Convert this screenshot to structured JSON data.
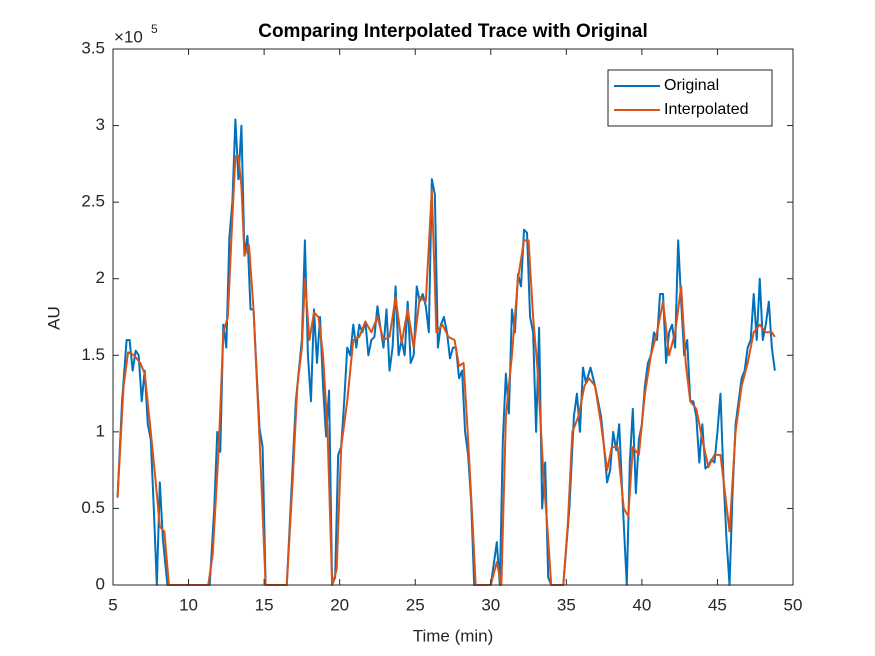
{
  "chart_data": {
    "type": "line",
    "title": "Comparing Interpolated Trace with Original",
    "x_label": "Time (min)",
    "y_label": "AU",
    "y_multiplier_base": "×10",
    "y_multiplier_exponent": "5",
    "xlim": [
      5,
      50
    ],
    "xticks": [
      5,
      10,
      15,
      20,
      25,
      30,
      35,
      40,
      45,
      50
    ],
    "ylim": [
      0,
      3.5
    ],
    "yticks": [
      0,
      0.5,
      1,
      1.5,
      2,
      2.5,
      3,
      3.5
    ],
    "grid": false,
    "legend_position": "northeast",
    "series": [
      {
        "name": "Original",
        "color": "#0072BD",
        "x": [
          5.3,
          5.6,
          5.9,
          6.1,
          6.3,
          6.5,
          6.7,
          6.9,
          7.1,
          7.3,
          7.5,
          7.7,
          7.9,
          8.1,
          8.3,
          8.6,
          9,
          10,
          11,
          11.4,
          11.7,
          11.9,
          12.1,
          12.3,
          12.5,
          12.7,
          12.9,
          13.1,
          13.3,
          13.5,
          13.7,
          13.9,
          14.1,
          14.3,
          14.5,
          14.7,
          14.9,
          15.1,
          15.5,
          16,
          16.5,
          16.9,
          17.1,
          17.3,
          17.5,
          17.7,
          17.9,
          18.1,
          18.3,
          18.5,
          18.7,
          18.9,
          19.1,
          19.3,
          19.5,
          19.7,
          19.9,
          20.1,
          20.3,
          20.5,
          20.7,
          20.9,
          21.1,
          21.3,
          21.5,
          21.7,
          21.9,
          22.1,
          22.3,
          22.5,
          22.7,
          22.9,
          23.1,
          23.3,
          23.5,
          23.7,
          23.9,
          24.1,
          24.3,
          24.5,
          24.7,
          24.9,
          25.1,
          25.3,
          25.5,
          25.7,
          25.9,
          26.1,
          26.3,
          26.5,
          26.7,
          26.9,
          27.1,
          27.3,
          27.5,
          27.7,
          27.9,
          28.1,
          28.3,
          28.5,
          28.7,
          28.9,
          29.5,
          30,
          30.4,
          30.6,
          30.8,
          31,
          31.2,
          31.4,
          31.6,
          31.8,
          32,
          32.2,
          32.4,
          32.6,
          32.8,
          33,
          33.2,
          33.4,
          33.6,
          33.8,
          34,
          34.5,
          34.8,
          35.2,
          35.5,
          35.7,
          35.9,
          36.1,
          36.3,
          36.6,
          36.9,
          37.1,
          37.3,
          37.5,
          37.7,
          37.9,
          38.1,
          38.3,
          38.5,
          38.7,
          39,
          39.2,
          39.4,
          39.6,
          39.8,
          40,
          40.2,
          40.4,
          40.6,
          40.8,
          41,
          41.2,
          41.4,
          41.6,
          41.8,
          42,
          42.2,
          42.4,
          42.6,
          42.8,
          43,
          43.2,
          43.4,
          43.6,
          43.8,
          44,
          44.2,
          44.4,
          44.6,
          44.8,
          45,
          45.2,
          45.4,
          45.6,
          45.8,
          46,
          46.2,
          46.4,
          46.6,
          46.8,
          47,
          47.2,
          47.4,
          47.6,
          47.8,
          48,
          48.2,
          48.4,
          48.6,
          48.8
        ],
        "values": [
          0.57,
          1.2,
          1.6,
          1.6,
          1.4,
          1.53,
          1.5,
          1.2,
          1.4,
          1.05,
          0.95,
          0.5,
          0,
          0.67,
          0.3,
          0,
          0,
          0,
          0,
          0,
          0.5,
          1.0,
          0.87,
          1.7,
          1.55,
          2.27,
          2.5,
          3.04,
          2.65,
          3.0,
          2.15,
          2.28,
          1.8,
          1.8,
          1.4,
          1.02,
          0.9,
          0,
          0,
          0,
          0,
          0.8,
          1.2,
          1.4,
          1.6,
          2.25,
          1.5,
          1.2,
          1.8,
          1.45,
          1.75,
          1.3,
          0.97,
          1.27,
          0,
          0.05,
          0.85,
          0.9,
          1.2,
          1.55,
          1.5,
          1.7,
          1.55,
          1.7,
          1.65,
          1.72,
          1.5,
          1.6,
          1.62,
          1.82,
          1.68,
          1.55,
          1.8,
          1.4,
          1.55,
          1.95,
          1.5,
          1.6,
          1.5,
          1.85,
          1.45,
          1.5,
          1.95,
          1.85,
          1.9,
          1.82,
          1.65,
          2.65,
          2.55,
          1.55,
          1.7,
          1.75,
          1.65,
          1.48,
          1.55,
          1.55,
          1.35,
          1.4,
          1.0,
          0.85,
          0.55,
          0,
          0,
          0,
          0.28,
          0,
          0.95,
          1.38,
          1.12,
          1.8,
          1.65,
          2.03,
          1.95,
          2.32,
          2.3,
          1.75,
          1.65,
          1.0,
          1.68,
          0.5,
          0.8,
          0.05,
          0,
          0,
          0,
          0.5,
          1.1,
          1.25,
          1.0,
          1.42,
          1.32,
          1.42,
          1.3,
          1.2,
          1.1,
          0.9,
          0.67,
          0.75,
          1.0,
          0.88,
          1.05,
          0.6,
          0,
          0.8,
          1.15,
          0.6,
          0.95,
          1.05,
          1.3,
          1.45,
          1.5,
          1.65,
          1.6,
          1.9,
          1.9,
          1.45,
          1.65,
          1.7,
          1.55,
          2.25,
          1.85,
          1.5,
          1.6,
          1.2,
          1.2,
          1.1,
          0.8,
          1.05,
          0.76,
          0.78,
          0.82,
          0.8,
          1.0,
          1.25,
          0.7,
          0.3,
          0,
          0.6,
          1.05,
          1.2,
          1.35,
          1.4,
          1.55,
          1.6,
          1.9,
          1.6,
          2.0,
          1.6,
          1.7,
          1.85,
          1.55,
          1.4
        ]
      },
      {
        "name": "Interpolated",
        "color": "#D95319",
        "x": [
          5.3,
          5.7,
          6,
          6.4,
          6.8,
          7.1,
          7.5,
          7.8,
          8.1,
          8.4,
          8.7,
          9,
          10,
          11,
          11.3,
          11.6,
          12,
          12.3,
          12.6,
          12.9,
          13.1,
          13.3,
          13.5,
          13.7,
          14,
          14.3,
          14.7,
          15.1,
          15.5,
          16.5,
          16.9,
          17.2,
          17.5,
          17.7,
          18,
          18.3,
          18.6,
          18.9,
          19.2,
          19.5,
          19.8,
          20.1,
          20.5,
          20.9,
          21.3,
          21.7,
          22.1,
          22.5,
          22.9,
          23.3,
          23.7,
          24.1,
          24.5,
          24.9,
          25.3,
          25.7,
          26.1,
          26.4,
          26.8,
          27.2,
          27.6,
          27.9,
          28.2,
          28.5,
          28.8,
          29,
          30,
          30.4,
          30.7,
          31,
          31.4,
          31.8,
          32.2,
          32.5,
          32.8,
          33.1,
          33.5,
          33.8,
          34,
          34.8,
          35.1,
          35.4,
          35.8,
          36.2,
          36.5,
          36.9,
          37.3,
          37.7,
          38,
          38.4,
          38.8,
          39.1,
          39.4,
          39.8,
          40.2,
          40.6,
          41,
          41.4,
          41.8,
          42.2,
          42.6,
          42.9,
          43.2,
          43.6,
          44,
          44.4,
          44.8,
          45.2,
          45.5,
          45.8,
          46.2,
          46.6,
          47,
          47.4,
          47.8,
          48.2,
          48.6,
          48.8
        ],
        "values": [
          0.57,
          1.3,
          1.52,
          1.5,
          1.45,
          1.38,
          1.0,
          0.7,
          0.38,
          0.35,
          0,
          0,
          0,
          0,
          0,
          0.2,
          0.9,
          1.65,
          1.75,
          2.4,
          2.8,
          2.8,
          2.6,
          2.15,
          2.22,
          1.8,
          0.95,
          0,
          0,
          0,
          0.7,
          1.3,
          1.55,
          2.0,
          1.6,
          1.78,
          1.75,
          1.5,
          1.0,
          0,
          0.1,
          0.9,
          1.2,
          1.6,
          1.62,
          1.72,
          1.65,
          1.75,
          1.6,
          1.62,
          1.88,
          1.58,
          1.8,
          1.55,
          1.88,
          1.85,
          2.58,
          1.65,
          1.7,
          1.62,
          1.6,
          1.43,
          1.45,
          0.95,
          0.4,
          0,
          0,
          0.15,
          0,
          1.1,
          1.5,
          2.0,
          2.25,
          2.25,
          1.75,
          1.4,
          0.7,
          0.3,
          0,
          0,
          0.4,
          1.0,
          1.1,
          1.3,
          1.35,
          1.3,
          1.05,
          0.75,
          0.9,
          0.9,
          0.5,
          0.45,
          0.9,
          0.85,
          1.25,
          1.5,
          1.65,
          1.85,
          1.5,
          1.65,
          1.95,
          1.45,
          1.2,
          1.15,
          0.95,
          0.77,
          0.85,
          0.85,
          0.6,
          0.35,
          1.0,
          1.3,
          1.45,
          1.65,
          1.7,
          1.65,
          1.65,
          1.62
        ]
      }
    ]
  }
}
